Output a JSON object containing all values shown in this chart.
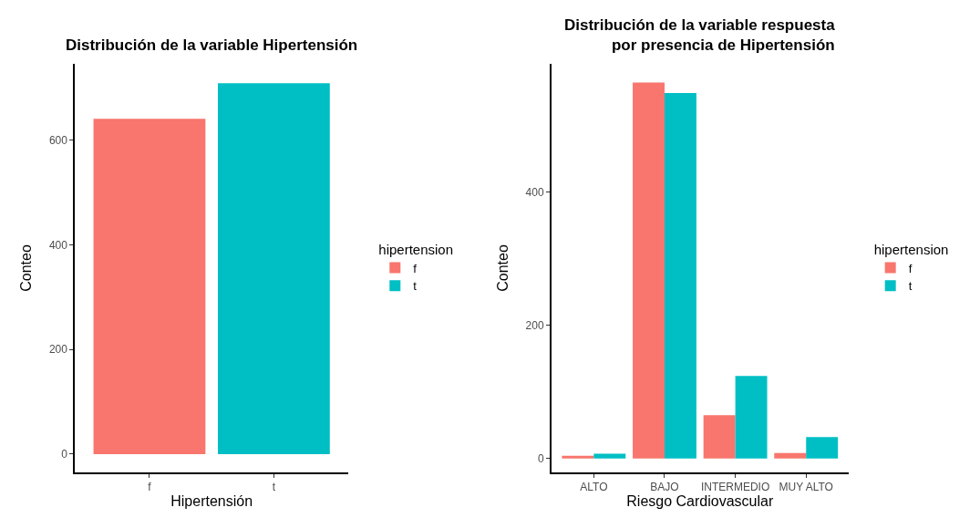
{
  "chart_data": [
    {
      "type": "bar",
      "title": "Distribución de la variable Hipertensión",
      "xlabel": "Hipertensión",
      "ylabel": "Conteo",
      "legend_title": "hipertension",
      "categories": [
        "f",
        "t"
      ],
      "series": [
        {
          "name": "f",
          "color": "#f8766d",
          "values": [
            641,
            null
          ]
        },
        {
          "name": "t",
          "color": "#00bfc4",
          "values": [
            null,
            709
          ]
        }
      ],
      "ylim": [
        -35,
        746
      ],
      "yticks": [
        0,
        200,
        400,
        600
      ],
      "legend": "right"
    },
    {
      "type": "bar",
      "title": "Distribución de la variable respuesta\npor presencia de Hipertensión",
      "xlabel": "Riesgo Cardiovascular",
      "ylabel": "Conteo",
      "legend_title": "hipertension",
      "categories": [
        "ALTO",
        "BAJO",
        "INTERMEDIO",
        "MUY ALTO"
      ],
      "series": [
        {
          "name": "f",
          "color": "#f8766d",
          "values": [
            4,
            565,
            65,
            8
          ]
        },
        {
          "name": "t",
          "color": "#00bfc4",
          "values": [
            7,
            549,
            124,
            32
          ]
        }
      ],
      "ylim": [
        -21,
        593
      ],
      "yticks": [
        0,
        200,
        400
      ],
      "legend": "right"
    }
  ]
}
